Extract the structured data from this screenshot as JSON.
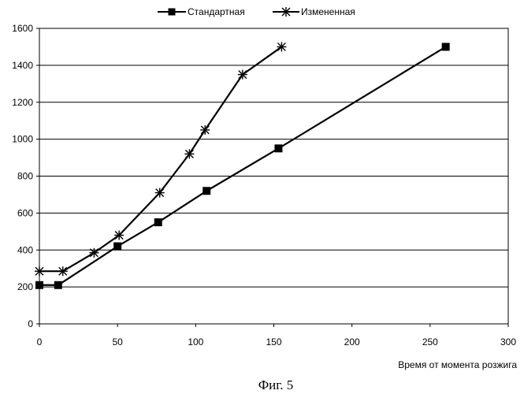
{
  "chart_data": {
    "type": "line",
    "title": "",
    "xlabel": "Время от момента розжига",
    "ylabel": "",
    "xlim": [
      0,
      300
    ],
    "ylim": [
      0,
      1600
    ],
    "xticks": [
      "0",
      "50",
      "100",
      "150",
      "200",
      "250",
      "300"
    ],
    "yticks": [
      "0",
      "200",
      "400",
      "600",
      "800",
      "1000",
      "1200",
      "1400",
      "1600"
    ],
    "grid": "horizontal",
    "legend": "top-center",
    "series": [
      {
        "name": "Стандартная",
        "marker": "square",
        "x": [
          0,
          12,
          50,
          76,
          107,
          153,
          260
        ],
        "y": [
          210,
          210,
          420,
          550,
          720,
          950,
          1500
        ]
      },
      {
        "name": "Измененная",
        "marker": "asterisk",
        "x": [
          0,
          15,
          35,
          51,
          77,
          96,
          106,
          130,
          155
        ],
        "y": [
          285,
          285,
          385,
          480,
          710,
          920,
          1050,
          1350,
          1500
        ]
      }
    ],
    "caption": "Фиг. 5"
  }
}
